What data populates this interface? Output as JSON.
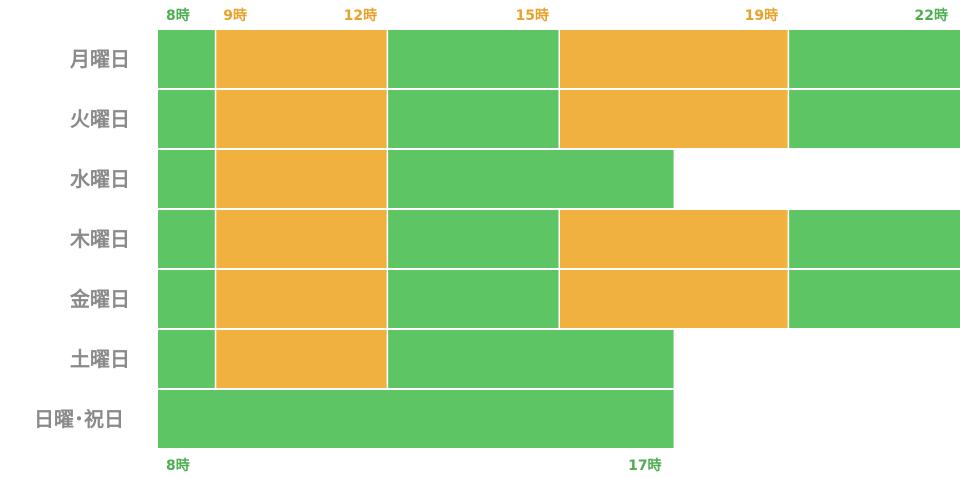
{
  "colors": {
    "green": "#5dc563",
    "orange": "#f0b13e",
    "label_gray": "#8a8a8a",
    "tick_green": "#4caf50",
    "tick_orange": "#e8a22a"
  },
  "chart_data": {
    "type": "bar",
    "orientation": "horizontal-timeline",
    "xlim": [
      8,
      22
    ],
    "categories": [
      "月曜日",
      "火曜日",
      "水曜日",
      "木曜日",
      "金曜日",
      "土曜日",
      "日曜･祝日"
    ],
    "top_ticks": [
      {
        "value": 8,
        "label": "8時",
        "color": "green"
      },
      {
        "value": 9,
        "label": "9時",
        "color": "orange"
      },
      {
        "value": 12,
        "label": "12時",
        "color": "orange"
      },
      {
        "value": 15,
        "label": "15時",
        "color": "orange"
      },
      {
        "value": 19,
        "label": "19時",
        "color": "orange"
      },
      {
        "value": 22,
        "label": "22時",
        "color": "green"
      }
    ],
    "bottom_ticks": [
      {
        "value": 8,
        "label": "8時",
        "color": "green"
      },
      {
        "value": 17,
        "label": "17時",
        "color": "green"
      }
    ],
    "rows": [
      {
        "segments": [
          {
            "start": 8,
            "end": 9,
            "color": "green"
          },
          {
            "start": 9,
            "end": 12,
            "color": "orange"
          },
          {
            "start": 12,
            "end": 15,
            "color": "green"
          },
          {
            "start": 15,
            "end": 19,
            "color": "orange"
          },
          {
            "start": 19,
            "end": 22,
            "color": "green"
          }
        ]
      },
      {
        "segments": [
          {
            "start": 8,
            "end": 9,
            "color": "green"
          },
          {
            "start": 9,
            "end": 12,
            "color": "orange"
          },
          {
            "start": 12,
            "end": 15,
            "color": "green"
          },
          {
            "start": 15,
            "end": 19,
            "color": "orange"
          },
          {
            "start": 19,
            "end": 22,
            "color": "green"
          }
        ]
      },
      {
        "segments": [
          {
            "start": 8,
            "end": 9,
            "color": "green"
          },
          {
            "start": 9,
            "end": 12,
            "color": "orange"
          },
          {
            "start": 12,
            "end": 17,
            "color": "green"
          }
        ]
      },
      {
        "segments": [
          {
            "start": 8,
            "end": 9,
            "color": "green"
          },
          {
            "start": 9,
            "end": 12,
            "color": "orange"
          },
          {
            "start": 12,
            "end": 15,
            "color": "green"
          },
          {
            "start": 15,
            "end": 19,
            "color": "orange"
          },
          {
            "start": 19,
            "end": 22,
            "color": "green"
          }
        ]
      },
      {
        "segments": [
          {
            "start": 8,
            "end": 9,
            "color": "green"
          },
          {
            "start": 9,
            "end": 12,
            "color": "orange"
          },
          {
            "start": 12,
            "end": 15,
            "color": "green"
          },
          {
            "start": 15,
            "end": 19,
            "color": "orange"
          },
          {
            "start": 19,
            "end": 22,
            "color": "green"
          }
        ]
      },
      {
        "segments": [
          {
            "start": 8,
            "end": 9,
            "color": "green"
          },
          {
            "start": 9,
            "end": 12,
            "color": "orange"
          },
          {
            "start": 12,
            "end": 17,
            "color": "green"
          }
        ]
      },
      {
        "segments": [
          {
            "start": 8,
            "end": 17,
            "color": "green"
          }
        ]
      }
    ],
    "grid": false,
    "legend": "none"
  }
}
